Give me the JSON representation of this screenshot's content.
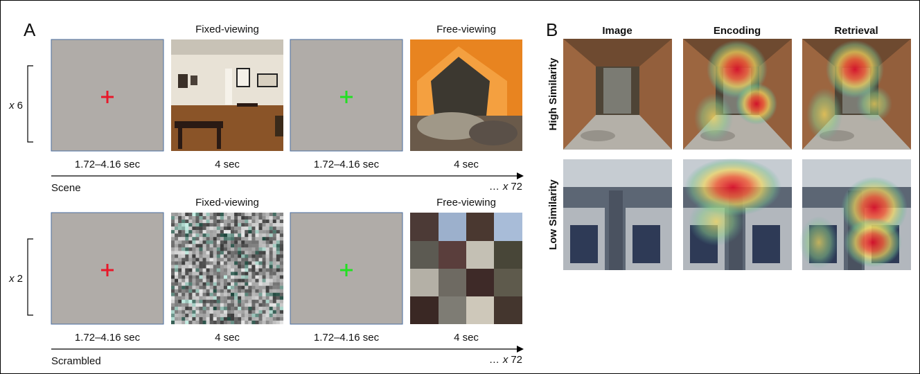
{
  "panel_a": {
    "label": "A",
    "rows": [
      {
        "category": "Scene",
        "repeat": {
          "symbol": "x",
          "count": "6"
        },
        "trials": [
          {
            "duration": "1.72–4.16 sec"
          },
          {
            "header": "Fixed-viewing",
            "duration": "4 sec"
          },
          {
            "duration": "1.72–4.16 sec"
          },
          {
            "header": "Free-viewing",
            "duration": "4 sec"
          }
        ],
        "total": {
          "prefix": "…",
          "symbol": "x",
          "count": "72"
        }
      },
      {
        "category": "Scrambled",
        "repeat": {
          "symbol": "x",
          "count": "2"
        },
        "trials": [
          {
            "duration": "1.72–4.16 sec"
          },
          {
            "header": "Fixed-viewing",
            "duration": "4 sec"
          },
          {
            "duration": "1.72–4.16 sec"
          },
          {
            "header": "Free-viewing",
            "duration": "4 sec"
          }
        ],
        "total": {
          "prefix": "…",
          "symbol": "x",
          "count": "72"
        }
      }
    ]
  },
  "panel_b": {
    "label": "B",
    "columns": [
      "Image",
      "Encoding",
      "Retrieval"
    ],
    "rows": [
      "High Similarity",
      "Low Similarity"
    ]
  }
}
